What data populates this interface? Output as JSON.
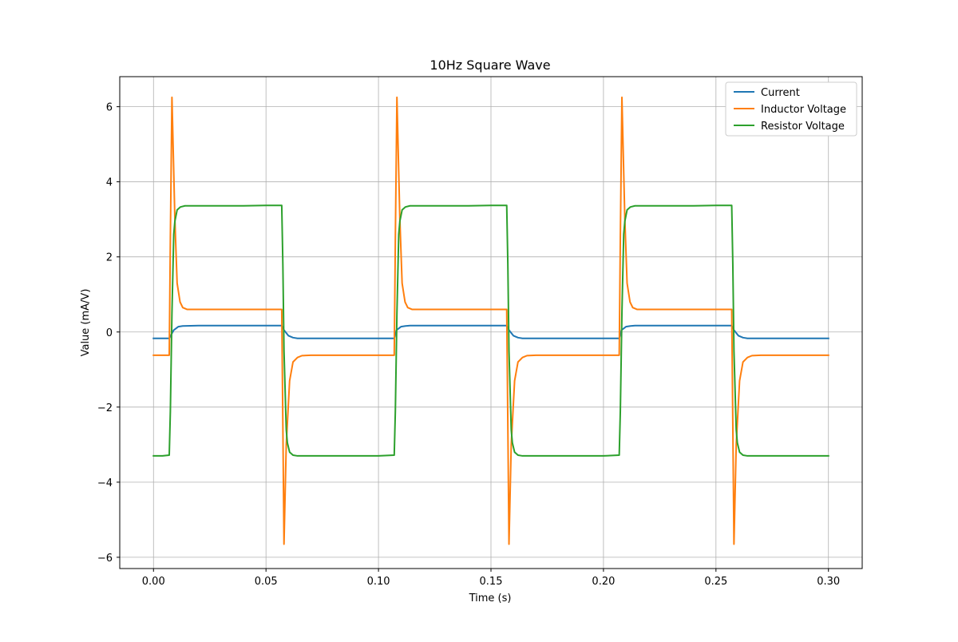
{
  "chart_data": {
    "type": "line",
    "title": "10Hz Square Wave",
    "xlabel": "Time (s)",
    "ylabel": "Value (mA/V)",
    "xlim": [
      -0.015,
      0.315
    ],
    "ylim": [
      -6.3,
      6.8
    ],
    "xticks": [
      0.0,
      0.05,
      0.1,
      0.15,
      0.2,
      0.25,
      0.3
    ],
    "xtick_labels": [
      "0.00",
      "0.05",
      "0.10",
      "0.15",
      "0.20",
      "0.25",
      "0.30"
    ],
    "yticks": [
      -6,
      -4,
      -2,
      0,
      2,
      4,
      6
    ],
    "ytick_labels": [
      "−6",
      "−4",
      "−2",
      "0",
      "2",
      "4",
      "6"
    ],
    "grid": true,
    "legend_position": "top-right",
    "series": [
      {
        "name": "Current",
        "color": "#1f77b4",
        "x": [
          0.0,
          0.007,
          0.009,
          0.011,
          0.013,
          0.02,
          0.057,
          0.058,
          0.06,
          0.062,
          0.064,
          0.07,
          0.107,
          0.108,
          0.11,
          0.112,
          0.114,
          0.12,
          0.157,
          0.158,
          0.16,
          0.162,
          0.164,
          0.17,
          0.207,
          0.208,
          0.21,
          0.212,
          0.214,
          0.22,
          0.257,
          0.258,
          0.26,
          0.262,
          0.264,
          0.27,
          0.3
        ],
        "y": [
          -0.17,
          -0.17,
          0.05,
          0.14,
          0.16,
          0.17,
          0.17,
          0.05,
          -0.1,
          -0.15,
          -0.17,
          -0.17,
          -0.17,
          0.05,
          0.14,
          0.16,
          0.17,
          0.17,
          0.17,
          0.05,
          -0.1,
          -0.15,
          -0.17,
          -0.17,
          -0.17,
          0.05,
          0.14,
          0.16,
          0.17,
          0.17,
          0.17,
          0.05,
          -0.1,
          -0.15,
          -0.17,
          -0.17,
          -0.17
        ]
      },
      {
        "name": "Inductor Voltage",
        "color": "#ff7f0e",
        "x": [
          0.0,
          0.0035,
          0.007,
          0.0075,
          0.0082,
          0.0095,
          0.0105,
          0.0118,
          0.013,
          0.015,
          0.02,
          0.03,
          0.04,
          0.05,
          0.057,
          0.0575,
          0.058,
          0.059,
          0.0605,
          0.062,
          0.064,
          0.066,
          0.07,
          0.08,
          0.09,
          0.1,
          0.107,
          0.1075,
          0.1082,
          0.1095,
          0.1105,
          0.1118,
          0.113,
          0.115,
          0.12,
          0.13,
          0.14,
          0.15,
          0.157,
          0.1575,
          0.158,
          0.159,
          0.1605,
          0.162,
          0.164,
          0.166,
          0.17,
          0.18,
          0.19,
          0.2,
          0.207,
          0.2075,
          0.2082,
          0.2095,
          0.2105,
          0.2118,
          0.213,
          0.215,
          0.22,
          0.23,
          0.24,
          0.25,
          0.257,
          0.2575,
          0.258,
          0.259,
          0.2605,
          0.262,
          0.264,
          0.266,
          0.27,
          0.28,
          0.29,
          0.3
        ],
        "y": [
          -0.62,
          -0.62,
          -0.62,
          2.5,
          6.25,
          3.0,
          1.3,
          0.8,
          0.65,
          0.6,
          0.6,
          0.6,
          0.6,
          0.6,
          0.6,
          -2.5,
          -5.65,
          -3.0,
          -1.3,
          -0.8,
          -0.68,
          -0.63,
          -0.62,
          -0.62,
          -0.62,
          -0.62,
          -0.62,
          2.5,
          6.25,
          3.0,
          1.3,
          0.8,
          0.65,
          0.6,
          0.6,
          0.6,
          0.6,
          0.6,
          0.6,
          -2.5,
          -5.65,
          -3.0,
          -1.3,
          -0.8,
          -0.68,
          -0.63,
          -0.62,
          -0.62,
          -0.62,
          -0.62,
          -0.62,
          2.5,
          6.25,
          3.0,
          1.3,
          0.8,
          0.65,
          0.6,
          0.6,
          0.6,
          0.6,
          0.6,
          0.6,
          -2.5,
          -5.65,
          -3.0,
          -1.3,
          -0.8,
          -0.68,
          -0.63,
          -0.62,
          -0.62,
          -0.62,
          -0.62
        ]
      },
      {
        "name": "Resistor Voltage",
        "color": "#2ca02c",
        "x": [
          0.0,
          0.004,
          0.007,
          0.0075,
          0.0082,
          0.009,
          0.0095,
          0.0105,
          0.012,
          0.014,
          0.02,
          0.03,
          0.04,
          0.05,
          0.057,
          0.0575,
          0.058,
          0.059,
          0.0595,
          0.0605,
          0.062,
          0.064,
          0.07,
          0.08,
          0.09,
          0.1,
          0.107,
          0.1075,
          0.1082,
          0.109,
          0.1095,
          0.1105,
          0.112,
          0.114,
          0.12,
          0.13,
          0.14,
          0.15,
          0.157,
          0.1575,
          0.158,
          0.159,
          0.1595,
          0.1605,
          0.162,
          0.164,
          0.17,
          0.18,
          0.19,
          0.2,
          0.207,
          0.2075,
          0.2082,
          0.209,
          0.2095,
          0.2105,
          0.212,
          0.214,
          0.22,
          0.23,
          0.24,
          0.25,
          0.257,
          0.2575,
          0.258,
          0.259,
          0.2595,
          0.2605,
          0.262,
          0.264,
          0.27,
          0.28,
          0.29,
          0.3
        ],
        "y": [
          -3.3,
          -3.3,
          -3.28,
          -2.1,
          0.5,
          2.6,
          2.95,
          3.25,
          3.33,
          3.36,
          3.36,
          3.36,
          3.36,
          3.37,
          3.37,
          1.8,
          -0.5,
          -2.6,
          -2.95,
          -3.2,
          -3.28,
          -3.3,
          -3.3,
          -3.3,
          -3.3,
          -3.3,
          -3.28,
          -2.1,
          0.5,
          2.6,
          2.95,
          3.25,
          3.33,
          3.36,
          3.36,
          3.36,
          3.36,
          3.37,
          3.37,
          1.8,
          -0.5,
          -2.6,
          -2.95,
          -3.2,
          -3.28,
          -3.3,
          -3.3,
          -3.3,
          -3.3,
          -3.3,
          -3.28,
          -2.1,
          0.5,
          2.6,
          2.95,
          3.25,
          3.33,
          3.36,
          3.36,
          3.36,
          3.36,
          3.37,
          3.37,
          1.8,
          -0.5,
          -2.6,
          -2.95,
          -3.2,
          -3.28,
          -3.3,
          -3.3,
          -3.3,
          -3.3,
          -3.3
        ]
      }
    ]
  }
}
